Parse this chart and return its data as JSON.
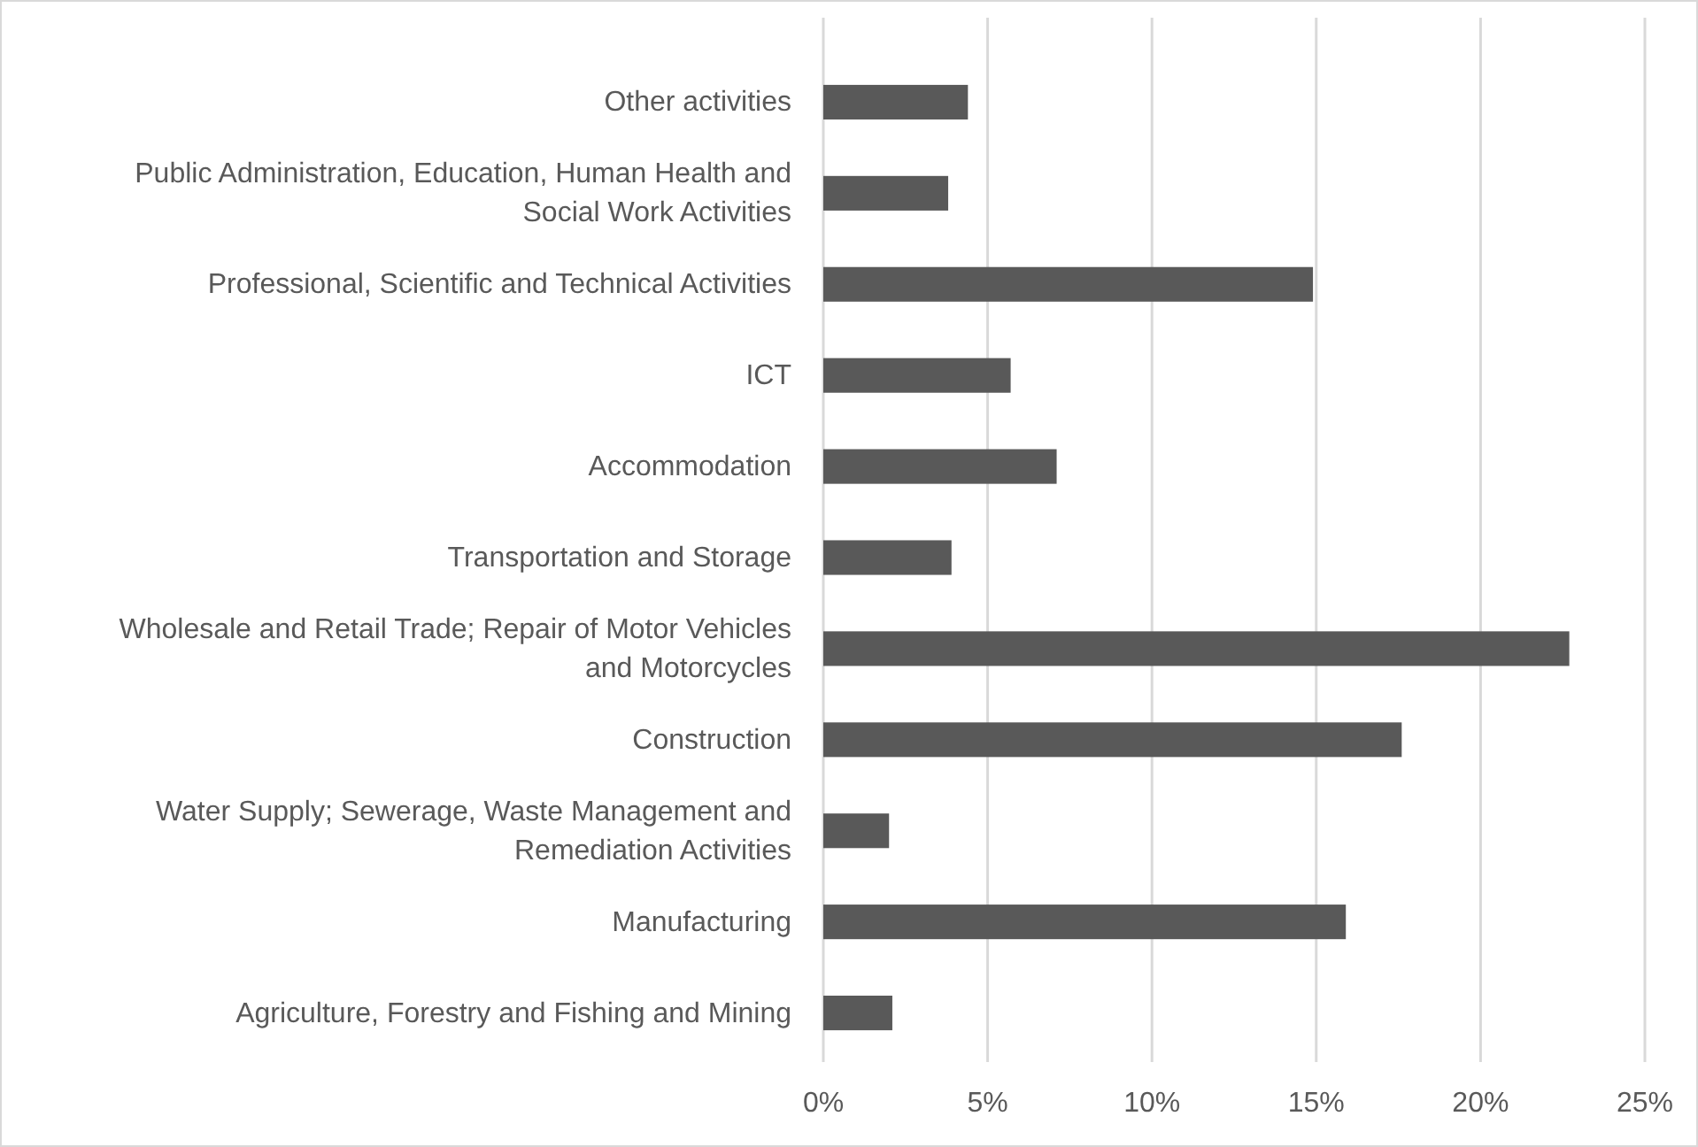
{
  "chart_data": {
    "type": "bar",
    "orientation": "horizontal",
    "categories": [
      "Other activities",
      "Public Administration, Education, Human Health and Social Work Activities",
      "Professional, Scientific and Technical Activities",
      "ICT",
      "Accommodation",
      "Transportation and Storage",
      "Wholesale and Retail Trade; Repair of Motor Vehicles and Motorcycles",
      "Construction",
      "Water Supply; Sewerage, Waste Management and Remediation Activities",
      "Manufacturing",
      "Agriculture, Forestry and Fishing and Mining"
    ],
    "values": [
      4.4,
      3.8,
      14.9,
      5.7,
      7.1,
      3.9,
      22.7,
      17.6,
      2.0,
      15.9,
      2.1
    ],
    "color": "#595959",
    "xlim": [
      0,
      25
    ],
    "xticks": [
      {
        "value": 0,
        "label": "0%"
      },
      {
        "value": 5,
        "label": "5%"
      },
      {
        "value": 10,
        "label": "10%"
      },
      {
        "value": 15,
        "label": "15%"
      },
      {
        "value": 20,
        "label": "20%"
      },
      {
        "value": 25,
        "label": "25%"
      }
    ],
    "grid": "x"
  }
}
